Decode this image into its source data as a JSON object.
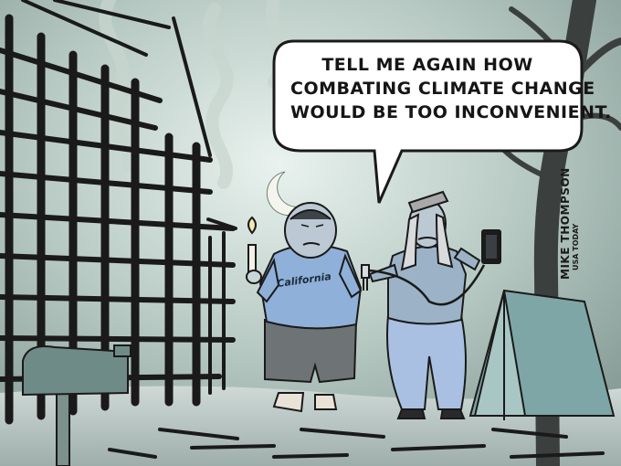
{
  "speech_bubble": {
    "lines": [
      "TELL ME AGAIN HOW",
      "COMBATING CLIMATE CHANGE",
      "WOULD BE TOO INCONVENIENT."
    ]
  },
  "shirt_text": "California",
  "signature": {
    "artist": "MIKE THOMPSON",
    "publication": "USA TODAY"
  },
  "colors": {
    "sky": "#9fb3ad",
    "ground": "#b9c6c3",
    "ink": "#151515",
    "shirt": "#8fb0d8",
    "tent": "#7fa6a6"
  }
}
